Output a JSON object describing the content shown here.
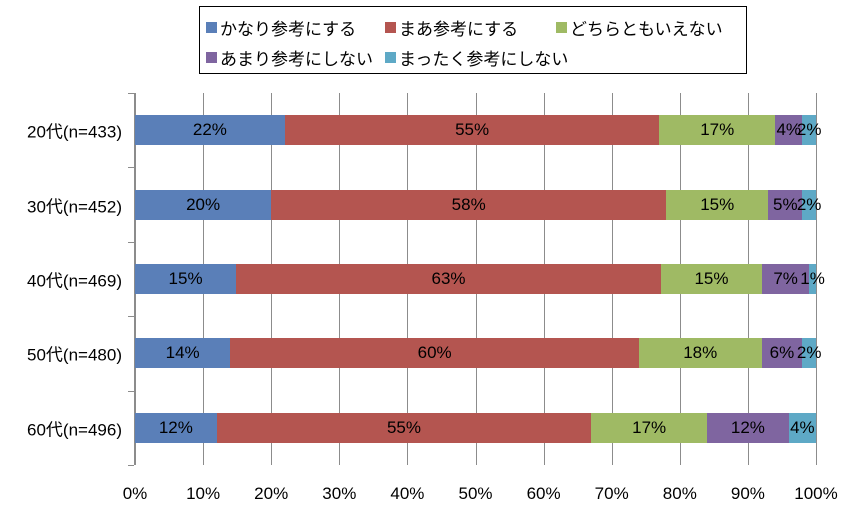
{
  "chart_data": {
    "type": "bar",
    "orientation": "horizontal",
    "stacked": true,
    "percent_stacked": true,
    "title": "",
    "xlabel": "",
    "ylabel": "",
    "xlim": [
      0,
      100
    ],
    "x_ticks": [
      "0%",
      "10%",
      "20%",
      "30%",
      "40%",
      "50%",
      "60%",
      "70%",
      "80%",
      "90%",
      "100%"
    ],
    "grid": true,
    "legend_position": "top",
    "categories": [
      "20代(n=433)",
      "30代(n=452)",
      "40代(n=469)",
      "50代(n=480)",
      "60代(n=496)"
    ],
    "series": [
      {
        "name": "かなり参考にする",
        "color": "#5a7fb8",
        "values": [
          22,
          20,
          15,
          14,
          12
        ]
      },
      {
        "name": "まあ参考にする",
        "color": "#b45550",
        "values": [
          55,
          58,
          63,
          60,
          55
        ]
      },
      {
        "name": "どちらともいえない",
        "color": "#9fba64",
        "values": [
          17,
          15,
          15,
          18,
          17
        ]
      },
      {
        "name": "あまり参考にしない",
        "color": "#7f65a0",
        "values": [
          4,
          5,
          7,
          6,
          12
        ]
      },
      {
        "name": "まったく参考にしない",
        "color": "#5ea9c6",
        "values": [
          2,
          2,
          1,
          2,
          4
        ]
      }
    ],
    "labels": [
      [
        "22%",
        "55%",
        "17%",
        "4%",
        "2%"
      ],
      [
        "20%",
        "58%",
        "15%",
        "5%",
        "2%"
      ],
      [
        "15%",
        "63%",
        "15%",
        "7%",
        "1%"
      ],
      [
        "14%",
        "60%",
        "18%",
        "6%",
        "2%"
      ],
      [
        "12%",
        "55%",
        "17%",
        "12%",
        "4%"
      ]
    ]
  },
  "legend": {
    "items": [
      {
        "label": "かなり参考にする",
        "color": "#5a7fb8"
      },
      {
        "label": "まあ参考にする",
        "color": "#b45550"
      },
      {
        "label": "どちらともいえない",
        "color": "#9fba64"
      },
      {
        "label": "あまり参考にしない",
        "color": "#7f65a0"
      },
      {
        "label": "まったく参考にしない",
        "color": "#5ea9c6"
      }
    ]
  }
}
